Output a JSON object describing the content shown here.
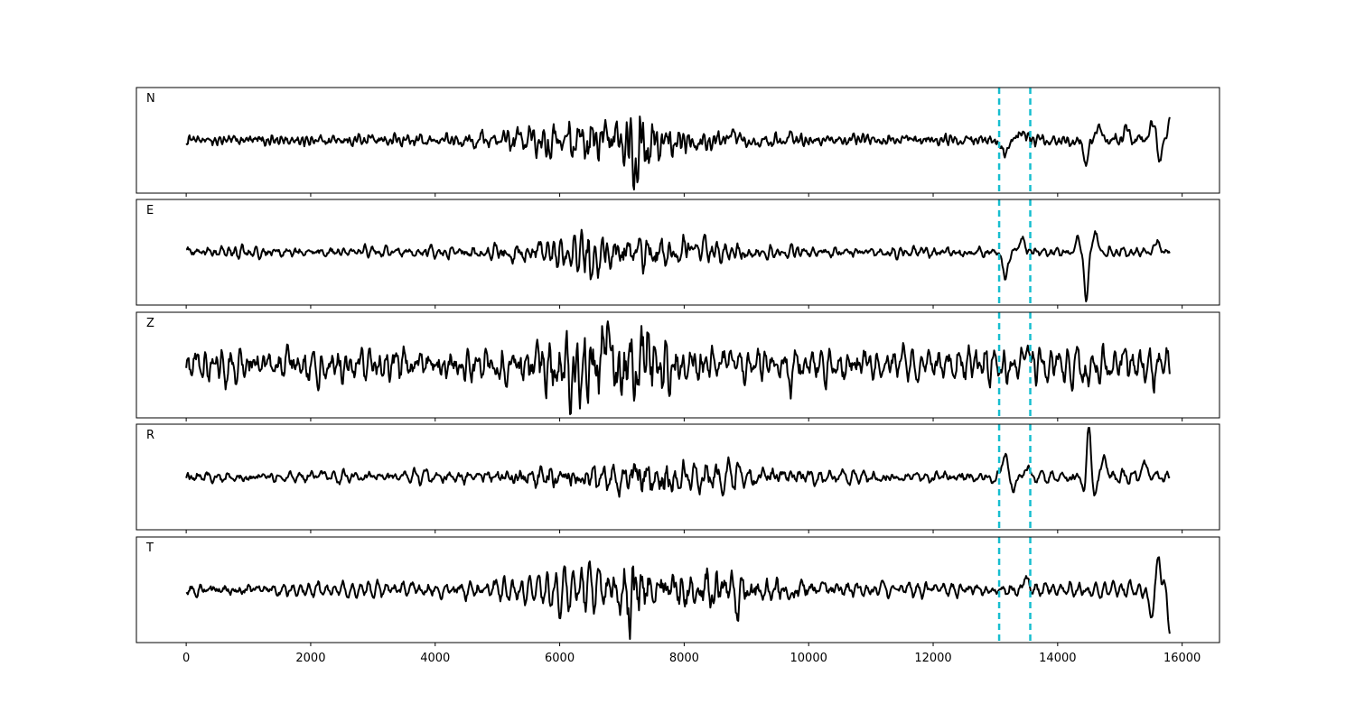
{
  "chart_data": {
    "type": "line",
    "layout": "5 vertically stacked panels sharing the x axis",
    "xlim": [
      -800,
      16600
    ],
    "x_ticks": [
      0,
      2000,
      4000,
      6000,
      8000,
      10000,
      12000,
      14000,
      16000
    ],
    "x_tick_labels": [
      "0",
      "2000",
      "4000",
      "6000",
      "8000",
      "10000",
      "12000",
      "14000",
      "16000"
    ],
    "x_range_data": [
      0,
      15800
    ],
    "y_ticks_shown": false,
    "grid": false,
    "line_color": "#000000",
    "marker_color": "#17becf",
    "markers": {
      "style": "dashed vertical lines on every panel",
      "x": [
        13060,
        13560
      ]
    },
    "series": [
      {
        "name": "N",
        "noise_sd": 0.1,
        "features": [
          {
            "x": 5500,
            "to": 8000,
            "amp": 0.25,
            "sd": 1100,
            "kind": "burst"
          },
          {
            "x": 7300,
            "to": 7300,
            "amp": 0.45,
            "sd": 120,
            "kind": "burst"
          },
          {
            "x": 8800,
            "to": 8800,
            "amp": 0.5,
            "sd": 25,
            "kind": "peak"
          },
          {
            "x": 9700,
            "to": 9700,
            "amp": 0.3,
            "sd": 25,
            "kind": "peak"
          },
          {
            "x": 13160,
            "to": 13160,
            "amp": -0.55,
            "sd": 45,
            "kind": "peak"
          },
          {
            "x": 13420,
            "to": 13420,
            "amp": 0.35,
            "sd": 50,
            "kind": "peak"
          },
          {
            "x": 14460,
            "to": 14460,
            "amp": -0.85,
            "sd": 35,
            "kind": "peak"
          },
          {
            "x": 14650,
            "to": 14650,
            "amp": 0.55,
            "sd": 35,
            "kind": "peak"
          },
          {
            "x": 15100,
            "to": 15100,
            "amp": 0.5,
            "sd": 40,
            "kind": "peak"
          },
          {
            "x": 15530,
            "to": 15530,
            "amp": 0.55,
            "sd": 50,
            "kind": "peak"
          },
          {
            "x": 15640,
            "to": 15640,
            "amp": -0.85,
            "sd": 30,
            "kind": "peak"
          },
          {
            "x": 15800,
            "to": 15800,
            "amp": 0.9,
            "sd": 25,
            "kind": "peak"
          }
        ]
      },
      {
        "name": "E",
        "noise_sd": 0.07,
        "features": [
          {
            "x": 5500,
            "to": 8500,
            "amp": 0.18,
            "sd": 1200,
            "kind": "burst"
          },
          {
            "x": 6500,
            "to": 6500,
            "amp": 0.3,
            "sd": 60,
            "kind": "burst"
          },
          {
            "x": 8050,
            "to": 8050,
            "amp": 0.3,
            "sd": 25,
            "kind": "peak"
          },
          {
            "x": 13160,
            "to": 13160,
            "amp": -0.65,
            "sd": 45,
            "kind": "peak"
          },
          {
            "x": 13420,
            "to": 13420,
            "amp": 0.35,
            "sd": 50,
            "kind": "peak"
          },
          {
            "x": 14460,
            "to": 14460,
            "amp": -1.25,
            "sd": 35,
            "kind": "peak"
          },
          {
            "x": 14600,
            "to": 14600,
            "amp": 0.55,
            "sd": 45,
            "kind": "peak"
          },
          {
            "x": 14320,
            "to": 14320,
            "amp": 0.35,
            "sd": 30,
            "kind": "peak"
          },
          {
            "x": 15600,
            "to": 15600,
            "amp": 0.3,
            "sd": 40,
            "kind": "peak"
          }
        ]
      },
      {
        "name": "Z",
        "noise_sd": 0.28,
        "features": [
          {
            "x": 6000,
            "to": 7500,
            "amp": 0.55,
            "sd": 700,
            "kind": "burst"
          },
          {
            "x": 6200,
            "to": 6200,
            "amp": -0.9,
            "sd": 35,
            "kind": "peak"
          },
          {
            "x": 6700,
            "to": 6700,
            "amp": 0.85,
            "sd": 35,
            "kind": "peak"
          },
          {
            "x": 7400,
            "to": 7400,
            "amp": 0.75,
            "sd": 35,
            "kind": "peak"
          },
          {
            "x": 9700,
            "to": 9700,
            "amp": -0.75,
            "sd": 30,
            "kind": "peak"
          },
          {
            "x": 13500,
            "to": 13500,
            "amp": 0.55,
            "sd": 40,
            "kind": "peak"
          },
          {
            "x": 14450,
            "to": 14450,
            "amp": -0.6,
            "sd": 35,
            "kind": "peak"
          }
        ]
      },
      {
        "name": "R",
        "noise_sd": 0.065,
        "features": [
          {
            "x": 6000,
            "to": 9000,
            "amp": 0.15,
            "sd": 1300,
            "kind": "burst"
          },
          {
            "x": 13150,
            "to": 13150,
            "amp": 0.55,
            "sd": 40,
            "kind": "peak"
          },
          {
            "x": 13280,
            "to": 13280,
            "amp": -0.2,
            "sd": 40,
            "kind": "peak"
          },
          {
            "x": 13500,
            "to": 13500,
            "amp": 0.25,
            "sd": 40,
            "kind": "peak"
          },
          {
            "x": 14420,
            "to": 14420,
            "amp": -0.35,
            "sd": 30,
            "kind": "peak"
          },
          {
            "x": 14500,
            "to": 14500,
            "amp": 1.15,
            "sd": 30,
            "kind": "peak"
          },
          {
            "x": 14600,
            "to": 14600,
            "amp": -0.45,
            "sd": 30,
            "kind": "peak"
          },
          {
            "x": 14750,
            "to": 14750,
            "amp": 0.4,
            "sd": 40,
            "kind": "peak"
          },
          {
            "x": 15400,
            "to": 15400,
            "amp": 0.25,
            "sd": 50,
            "kind": "peak"
          }
        ]
      },
      {
        "name": "T",
        "noise_sd": 0.08,
        "features": [
          {
            "x": 5500,
            "to": 9500,
            "amp": 0.2,
            "sd": 1500,
            "kind": "burst"
          },
          {
            "x": 7200,
            "to": 7200,
            "amp": 0.35,
            "sd": 100,
            "kind": "burst"
          },
          {
            "x": 8850,
            "to": 8850,
            "amp": -0.45,
            "sd": 25,
            "kind": "peak"
          },
          {
            "x": 13500,
            "to": 13500,
            "amp": 0.25,
            "sd": 40,
            "kind": "peak"
          },
          {
            "x": 15500,
            "to": 15500,
            "amp": -0.55,
            "sd": 40,
            "kind": "peak"
          },
          {
            "x": 15620,
            "to": 15620,
            "amp": 0.85,
            "sd": 30,
            "kind": "peak"
          },
          {
            "x": 15800,
            "to": 15800,
            "amp": -0.85,
            "sd": 25,
            "kind": "peak"
          }
        ]
      }
    ]
  }
}
